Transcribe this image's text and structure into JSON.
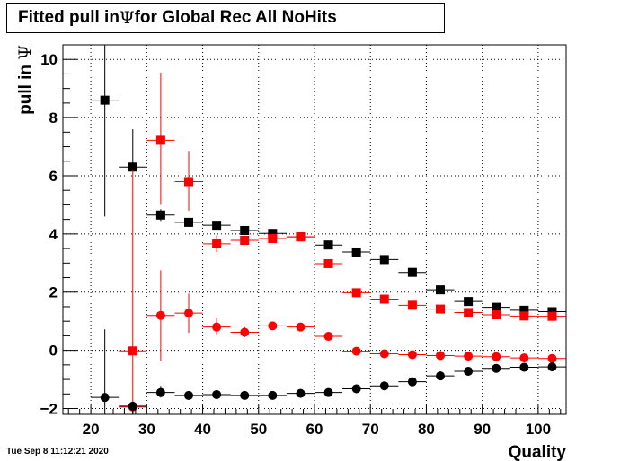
{
  "title_prefix": "Fitted pull in",
  "title_symbol": "Ψ",
  "title_suffix": "for Global Rec All NoHits",
  "date_stamp": "Tue Sep  8 11:12:21 2020",
  "ylabel_text": "pull in",
  "ylabel_symbol": "Ψ",
  "chart_data": {
    "type": "scatter",
    "title": "Fitted pull in Ψ for Global Rec All NoHits",
    "xlabel": "Quality",
    "ylabel": "pull in Ψ",
    "xlim": [
      15,
      105
    ],
    "ylim": [
      -2.2,
      10.5
    ],
    "xticks": [
      20,
      30,
      40,
      50,
      60,
      70,
      80,
      90,
      100
    ],
    "yticks": [
      -2,
      0,
      2,
      4,
      6,
      8,
      10
    ],
    "grid": true,
    "legend": "none",
    "series": [
      {
        "marker": "square",
        "color": "#000000",
        "x": [
          22.5,
          27.5,
          32.5,
          37.5,
          42.5,
          47.5,
          52.5,
          57.5,
          62.5,
          67.5,
          72.5,
          77.5,
          82.5,
          87.5,
          92.5,
          97.5,
          102.5
        ],
        "y": [
          8.6,
          6.3,
          4.65,
          4.4,
          4.3,
          4.12,
          4.02,
          3.9,
          3.62,
          3.38,
          3.12,
          2.68,
          2.08,
          1.68,
          1.48,
          1.38,
          1.33
        ],
        "yerr_low": [
          4.6,
          6.15,
          4.45,
          4.25,
          4.18,
          4.0,
          3.9,
          3.8,
          3.52,
          3.28,
          3.02,
          2.58,
          1.98,
          1.58,
          1.38,
          1.28,
          1.23
        ],
        "yerr_high": [
          10.5,
          7.6,
          4.85,
          4.55,
          4.42,
          4.24,
          4.14,
          4.0,
          3.72,
          3.48,
          3.22,
          2.78,
          2.18,
          1.78,
          1.58,
          1.48,
          1.43
        ]
      },
      {
        "marker": "square",
        "color": "#ff0000",
        "x": [
          27.5,
          32.5,
          37.5,
          42.5,
          47.5,
          52.5,
          57.5,
          62.5,
          67.5,
          72.5,
          77.5,
          82.5,
          87.5,
          92.5,
          97.5,
          102.5
        ],
        "y": [
          -0.02,
          7.22,
          5.8,
          3.66,
          3.78,
          3.84,
          3.9,
          2.98,
          1.98,
          1.76,
          1.55,
          1.42,
          1.3,
          1.22,
          1.18,
          1.17
        ],
        "yerr_low": [
          -2.2,
          5.0,
          4.8,
          3.38,
          3.62,
          3.7,
          3.78,
          2.88,
          1.88,
          1.66,
          1.45,
          1.32,
          1.2,
          1.12,
          1.08,
          1.07
        ],
        "yerr_high": [
          6.2,
          9.55,
          6.85,
          3.95,
          3.94,
          3.98,
          4.02,
          3.08,
          2.08,
          1.86,
          1.65,
          1.52,
          1.4,
          1.32,
          1.28,
          1.27
        ]
      },
      {
        "marker": "circle",
        "color": "#ff0000",
        "x": [
          27.5,
          32.5,
          37.5,
          42.5,
          47.5,
          52.5,
          57.5,
          62.5,
          67.5,
          72.5,
          77.5,
          82.5,
          87.5,
          92.5,
          97.5,
          102.5
        ],
        "y": [
          -1.95,
          1.2,
          1.28,
          0.8,
          0.62,
          0.84,
          0.8,
          0.48,
          -0.03,
          -0.12,
          -0.15,
          -0.18,
          -0.2,
          -0.22,
          -0.26,
          -0.28
        ],
        "yerr_low": [
          -2.2,
          -0.35,
          0.6,
          0.55,
          0.45,
          0.7,
          0.7,
          0.38,
          -0.13,
          -0.22,
          -0.25,
          -0.28,
          -0.3,
          -0.32,
          -0.36,
          -0.38
        ],
        "yerr_high": [
          -1.75,
          2.75,
          1.95,
          1.1,
          0.8,
          0.98,
          0.9,
          0.58,
          0.07,
          -0.02,
          -0.05,
          -0.08,
          -0.1,
          -0.12,
          -0.16,
          -0.18
        ]
      },
      {
        "marker": "circle",
        "color": "#000000",
        "x": [
          22.5,
          27.5,
          32.5,
          37.5,
          42.5,
          47.5,
          52.5,
          57.5,
          62.5,
          67.5,
          72.5,
          77.5,
          82.5,
          87.5,
          92.5,
          97.5,
          102.5
        ],
        "y": [
          -1.62,
          -1.92,
          -1.45,
          -1.55,
          -1.52,
          -1.55,
          -1.55,
          -1.48,
          -1.45,
          -1.32,
          -1.22,
          -1.08,
          -0.88,
          -0.72,
          -0.62,
          -0.58,
          -0.57
        ],
        "yerr_low": [
          -2.2,
          -2.2,
          -1.62,
          -1.7,
          -1.62,
          -1.65,
          -1.65,
          -1.58,
          -1.55,
          -1.42,
          -1.32,
          -1.18,
          -0.98,
          -0.82,
          -0.72,
          -0.68,
          -0.67
        ],
        "yerr_high": [
          0.72,
          -1.82,
          -1.22,
          -1.4,
          -1.42,
          -1.45,
          -1.45,
          -1.38,
          -1.35,
          -1.22,
          -1.12,
          -0.98,
          -0.78,
          -0.62,
          -0.52,
          -0.48,
          -0.47
        ]
      }
    ]
  }
}
